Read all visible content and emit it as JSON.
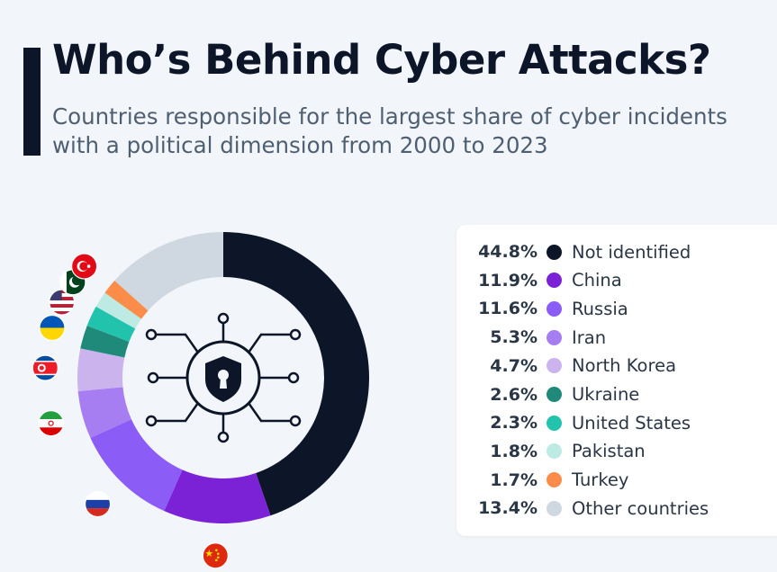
{
  "header": {
    "title": "Who’s Behind Cyber Attacks?",
    "subtitle": "Countries responsible for the largest share of cyber incidents with a political dimension from 2000 to 2023"
  },
  "chart_data": {
    "type": "pie",
    "variant": "donut",
    "title": "Who’s Behind Cyber Attacks?",
    "subtitle": "Countries responsible for the largest share of cyber incidents with a political dimension from 2000 to 2023",
    "legend_position": "right",
    "center_icon": "cyber-lock-shield-icon",
    "slices": [
      {
        "label": "Not identified",
        "value": 44.8,
        "display": "44.8%",
        "color": "#0c1628",
        "flag": ""
      },
      {
        "label": "China",
        "value": 11.9,
        "display": "11.9%",
        "color": "#7c22d6",
        "flag": "china-flag-icon"
      },
      {
        "label": "Russia",
        "value": 11.6,
        "display": "11.6%",
        "color": "#8b5cf6",
        "flag": "russia-flag-icon"
      },
      {
        "label": "Iran",
        "value": 5.3,
        "display": "5.3%",
        "color": "#a67ef2",
        "flag": "iran-flag-icon"
      },
      {
        "label": "North Korea",
        "value": 4.7,
        "display": "4.7%",
        "color": "#cbb4ee",
        "flag": "north-korea-flag-icon"
      },
      {
        "label": "Ukraine",
        "value": 2.6,
        "display": "2.6%",
        "color": "#1f8a7a",
        "flag": "ukraine-flag-icon"
      },
      {
        "label": "United States",
        "value": 2.3,
        "display": "2.3%",
        "color": "#22c3ad",
        "flag": "usa-flag-icon"
      },
      {
        "label": "Pakistan",
        "value": 1.8,
        "display": "1.8%",
        "color": "#bdebe4",
        "flag": "pakistan-flag-icon"
      },
      {
        "label": "Turkey",
        "value": 1.7,
        "display": "1.7%",
        "color": "#fb8c4a",
        "flag": "turkey-flag-icon"
      },
      {
        "label": "Other countries",
        "value": 13.4,
        "display": "13.4%",
        "color": "#cfd8e0",
        "flag": ""
      }
    ]
  }
}
